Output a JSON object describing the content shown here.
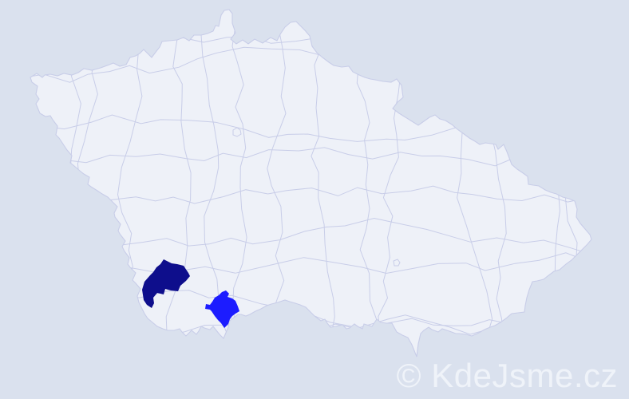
{
  "map": {
    "name": "czech-republic-district-map",
    "region": "Czech Republic (okresy / districts)",
    "highlighted_districts": [
      {
        "id": "highlight-dark",
        "location": "southwest Bohemia",
        "color": "#0e0e8c"
      },
      {
        "id": "highlight-bright",
        "location": "south Bohemia",
        "color": "#1c1cff"
      }
    ]
  },
  "watermark": {
    "text": "© KdeJsme.cz"
  },
  "colors": {
    "background": "#dae1ee",
    "district_fill": "#eef1f8",
    "district_border": "#c8cde8",
    "highlight_dark": "#0e0e8c",
    "highlight_bright": "#1c1cff",
    "watermark": "#f1f4fa"
  }
}
